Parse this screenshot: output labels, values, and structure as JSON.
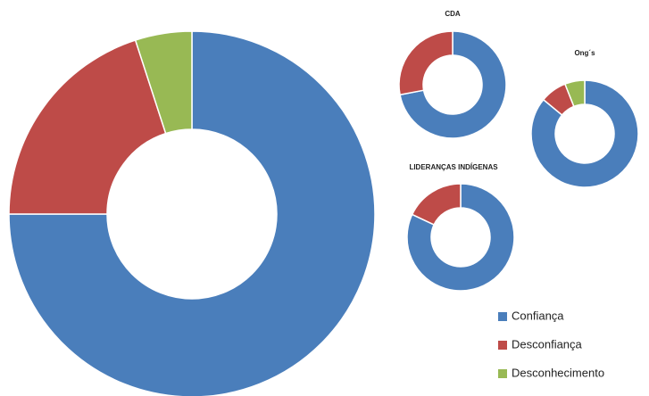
{
  "chart_data": [
    {
      "type": "pie",
      "categories": [
        "Confiança",
        "Desconfiança",
        "Desconhecimento"
      ],
      "colors": [
        "#4a7ebb",
        "#be4b48",
        "#98b954"
      ],
      "values": [
        75,
        20,
        5
      ],
      "legend": "bottom-right"
    },
    {
      "type": "pie",
      "title": "CDA",
      "values": [
        72,
        28,
        0
      ]
    },
    {
      "type": "pie",
      "title": "Ong´s",
      "values": [
        86,
        8,
        6
      ]
    },
    {
      "type": "pie",
      "title": "LIDERANÇAS INDÍGENAS",
      "values": [
        82,
        18,
        0
      ]
    }
  ]
}
